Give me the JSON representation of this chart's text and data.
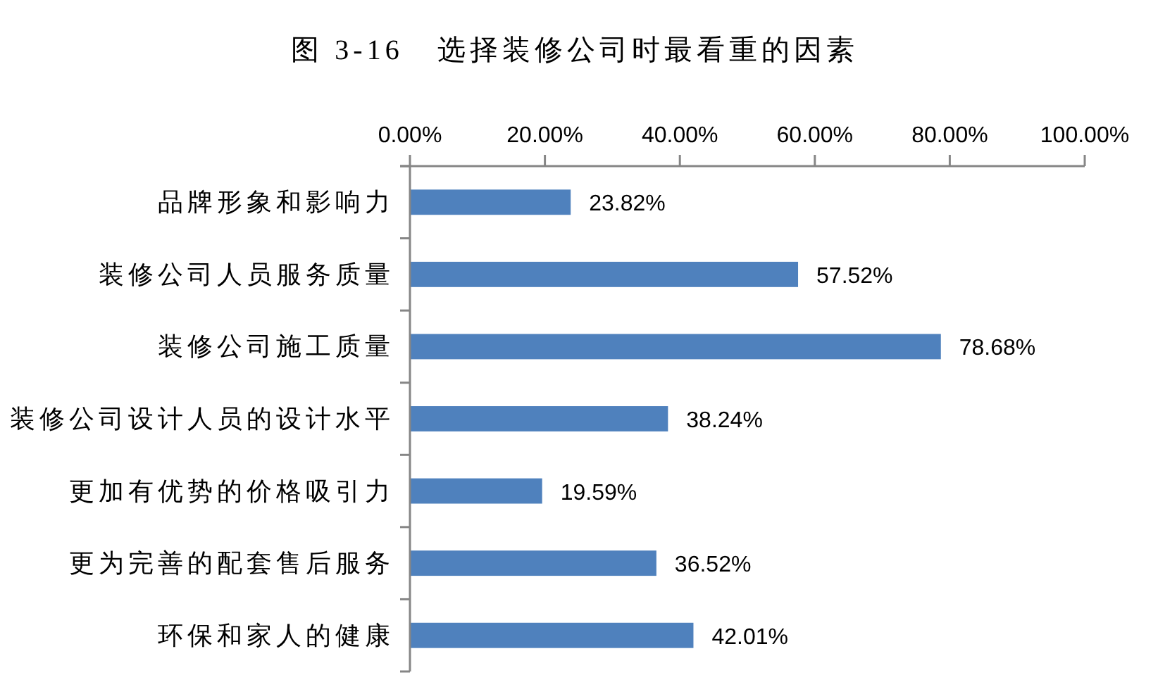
{
  "chart_data": {
    "type": "bar",
    "orientation": "horizontal",
    "title": "图 3-16   选择装修公司时最看重的因素",
    "categories": [
      "品牌形象和影响力",
      "装修公司人员服务质量",
      "装修公司施工质量",
      "装修公司设计人员的设计水平",
      "更加有优势的价格吸引力",
      "更为完善的配套售后服务",
      "环保和家人的健康"
    ],
    "values": [
      23.82,
      57.52,
      78.68,
      38.24,
      19.59,
      36.52,
      42.01
    ],
    "value_labels": [
      "23.82%",
      "57.52%",
      "78.68%",
      "38.24%",
      "19.59%",
      "36.52%",
      "42.01%"
    ],
    "color": "#4f81bd",
    "xlim": [
      0,
      100
    ],
    "xticks": [
      {
        "value": 0,
        "label": "0.00%"
      },
      {
        "value": 20,
        "label": "20.00%"
      },
      {
        "value": 40,
        "label": "40.00%"
      },
      {
        "value": 60,
        "label": "60.00%"
      },
      {
        "value": 80,
        "label": "80.00%"
      },
      {
        "value": 100,
        "label": "100.00%"
      }
    ]
  }
}
